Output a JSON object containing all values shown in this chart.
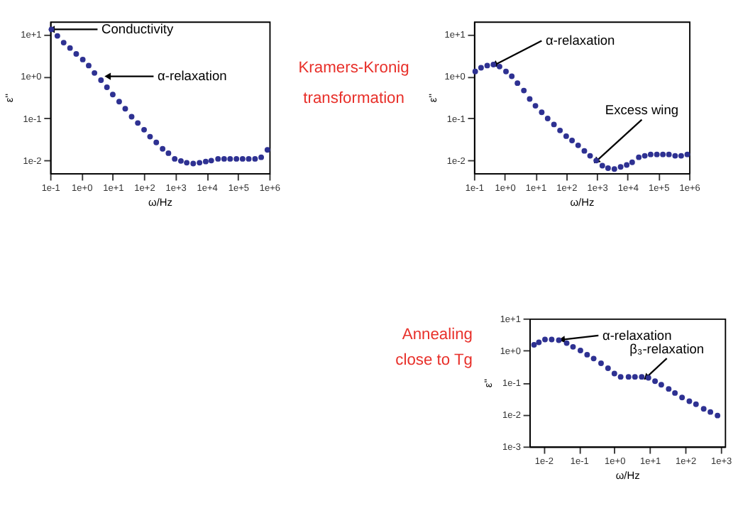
{
  "chart_data": [
    {
      "type": "scatter",
      "xlabel": "ω/Hz",
      "ylabel": "ε''",
      "log": "xy",
      "marker": "circle",
      "grid": false,
      "color": "#2e3192",
      "x": [
        0.11,
        0.17,
        0.27,
        0.43,
        0.68,
        1.1,
        1.7,
        2.6,
        4.2,
        6.5,
        10,
        16,
        25,
        40,
        63,
        100,
        155,
        245,
        390,
        600,
        950,
        1500,
        2300,
        3700,
        5900,
        9300,
        14000,
        23000,
        36000,
        56000,
        89000,
        140000,
        220000,
        350000,
        550000,
        870000
      ],
      "values": [
        13,
        9.1,
        6.3,
        4.7,
        3.4,
        2.5,
        1.8,
        1.2,
        0.81,
        0.55,
        0.37,
        0.25,
        0.17,
        0.11,
        0.078,
        0.054,
        0.037,
        0.027,
        0.019,
        0.015,
        0.011,
        0.0098,
        0.0089,
        0.0085,
        0.0089,
        0.0095,
        0.01,
        0.011,
        0.011,
        0.011,
        0.011,
        0.011,
        0.011,
        0.011,
        0.012,
        0.018
      ],
      "xlim": [
        0.1,
        1000000
      ],
      "ylim": [
        0.005,
        20
      ],
      "xticks": [
        {
          "value": 0.1,
          "label": "1e-1"
        },
        {
          "value": 1,
          "label": "1e+0"
        },
        {
          "value": 10,
          "label": "1e+1"
        },
        {
          "value": 100,
          "label": "1e+2"
        },
        {
          "value": 1000,
          "label": "1e+3"
        },
        {
          "value": 10000,
          "label": "1e+4"
        },
        {
          "value": 100000,
          "label": "1e+5"
        },
        {
          "value": 1000000,
          "label": "1e+6"
        }
      ],
      "yticks": [
        {
          "value": 0.01,
          "label": "1e-2"
        },
        {
          "value": 0.1,
          "label": "1e-1"
        },
        {
          "value": 1,
          "label": "1e+0"
        },
        {
          "value": 10,
          "label": "1e+1"
        }
      ],
      "annotations": [
        {
          "text": "Conductivity",
          "x": 0.12,
          "y": 13
        },
        {
          "text": "α-relaxation",
          "x": 7.4,
          "y": 1
        }
      ]
    },
    {
      "type": "other",
      "color": "#e8302a",
      "annotations": [
        "Kramers-Kronig",
        "transformation"
      ]
    },
    {
      "type": "scatter",
      "xlabel": "ω/Hz",
      "ylabel": "ε''",
      "log": "xy",
      "marker": "circle",
      "grid": false,
      "color": "#2e3192",
      "x": [
        0.11,
        0.17,
        0.27,
        0.43,
        0.68,
        1.1,
        1.7,
        2.6,
        4.2,
        6.5,
        10,
        16,
        25,
        40,
        63,
        100,
        155,
        245,
        390,
        600,
        950,
        1500,
        2300,
        3700,
        5900,
        9300,
        14000,
        23000,
        36000,
        56000,
        89000,
        140000,
        220000,
        350000,
        550000,
        870000
      ],
      "values": [
        1.3,
        1.6,
        1.8,
        1.9,
        1.7,
        1.3,
        1.0,
        0.69,
        0.46,
        0.29,
        0.2,
        0.14,
        0.1,
        0.072,
        0.052,
        0.038,
        0.03,
        0.023,
        0.017,
        0.013,
        0.01,
        0.0076,
        0.0066,
        0.0063,
        0.0071,
        0.0079,
        0.0091,
        0.012,
        0.013,
        0.014,
        0.014,
        0.014,
        0.014,
        0.013,
        0.013,
        0.014
      ],
      "xlim": [
        0.1,
        1000000
      ],
      "ylim": [
        0.005,
        20
      ],
      "xticks": [
        {
          "value": 0.1,
          "label": "1e-1"
        },
        {
          "value": 1,
          "label": "1e+0"
        },
        {
          "value": 10,
          "label": "1e+1"
        },
        {
          "value": 100,
          "label": "1e+2"
        },
        {
          "value": 1000,
          "label": "1e+3"
        },
        {
          "value": 10000,
          "label": "1e+4"
        },
        {
          "value": 100000,
          "label": "1e+5"
        },
        {
          "value": 1000000,
          "label": "1e+6"
        }
      ],
      "yticks": [
        {
          "value": 0.01,
          "label": "1e-2"
        },
        {
          "value": 0.1,
          "label": "1e-1"
        },
        {
          "value": 1,
          "label": "1e+0"
        },
        {
          "value": 10,
          "label": "1e+1"
        }
      ],
      "annotations": [
        {
          "text": "α-relaxation",
          "x": 0.5,
          "y": 1.9
        },
        {
          "text": "Excess wing",
          "x": 1000,
          "y": 0.01
        }
      ]
    },
    {
      "type": "other",
      "color": "#e8302a",
      "annotations": [
        "Annealing",
        "close to Tg"
      ]
    },
    {
      "type": "scatter",
      "xlabel": "ω/Hz",
      "ylabel": "ε''",
      "log": "xy",
      "marker": "circle",
      "grid": false,
      "color": "#2e3192",
      "x": [
        0.0054,
        0.0074,
        0.011,
        0.017,
        0.027,
        0.045,
        0.068,
        0.11,
        0.17,
        0.26,
        0.42,
        0.66,
        1.0,
        1.5,
        2.5,
        3.8,
        5.9,
        9.1,
        14,
        21,
        34,
        51,
        81,
        130,
        200,
        330,
        510,
        810
      ],
      "values": [
        1.5,
        1.8,
        2.2,
        2.2,
        2.1,
        1.7,
        1.3,
        1.0,
        0.74,
        0.56,
        0.4,
        0.28,
        0.19,
        0.15,
        0.15,
        0.15,
        0.15,
        0.14,
        0.11,
        0.085,
        0.063,
        0.047,
        0.034,
        0.026,
        0.021,
        0.015,
        0.012,
        0.0093
      ],
      "xlim": [
        0.004,
        1300
      ],
      "ylim": [
        0.001,
        10
      ],
      "xticks": [
        {
          "value": 0.01,
          "label": "1e-2"
        },
        {
          "value": 0.1,
          "label": "1e-1"
        },
        {
          "value": 1,
          "label": "1e+0"
        },
        {
          "value": 10,
          "label": "1e+1"
        },
        {
          "value": 100,
          "label": "1e+2"
        },
        {
          "value": 1000,
          "label": "1e+3"
        }
      ],
      "yticks": [
        {
          "value": 0.001,
          "label": "1e-3"
        },
        {
          "value": 0.01,
          "label": "1e-2"
        },
        {
          "value": 0.1,
          "label": "1e-1"
        },
        {
          "value": 1,
          "label": "1e+0"
        },
        {
          "value": 10,
          "label": "1e+1"
        }
      ],
      "annotations": [
        {
          "text": "α-relaxation",
          "x": 0.035,
          "y": 2.2
        },
        {
          "text": "β₃-relaxation",
          "x": 8.3,
          "y": 0.15
        }
      ]
    }
  ]
}
